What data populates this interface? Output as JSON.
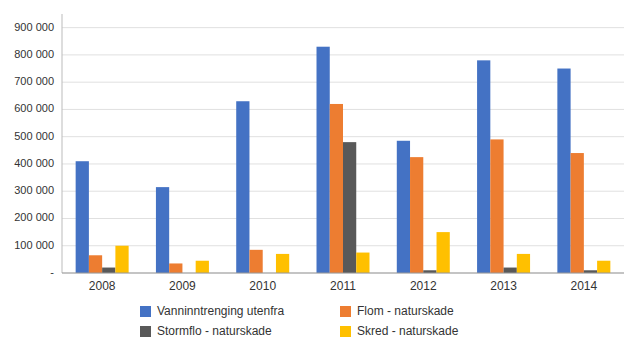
{
  "chart_data": {
    "type": "bar",
    "categories": [
      "2008",
      "2009",
      "2010",
      "2011",
      "2012",
      "2013",
      "2014"
    ],
    "series": [
      {
        "name": "Vanninntrenging utenfra",
        "color": "#4472C4",
        "values": [
          410000,
          315000,
          630000,
          830000,
          485000,
          780000,
          750000
        ]
      },
      {
        "name": "Flom - naturskade",
        "color": "#ED7D31",
        "values": [
          65000,
          35000,
          85000,
          620000,
          425000,
          490000,
          440000
        ]
      },
      {
        "name": "Stormflo - naturskade",
        "color": "#595959",
        "values": [
          20000,
          0,
          0,
          480000,
          10000,
          20000,
          10000
        ]
      },
      {
        "name": "Skred - naturskade",
        "color": "#FFC000",
        "values": [
          100000,
          45000,
          70000,
          75000,
          150000,
          70000,
          45000
        ]
      }
    ],
    "ylim": [
      0,
      950000
    ],
    "yticks": [
      {
        "value": 0,
        "label": "-"
      },
      {
        "value": 100000,
        "label": "100 000"
      },
      {
        "value": 200000,
        "label": "200 000"
      },
      {
        "value": 300000,
        "label": "300 000"
      },
      {
        "value": 400000,
        "label": "400 000"
      },
      {
        "value": 500000,
        "label": "500 000"
      },
      {
        "value": 600000,
        "label": "600 000"
      },
      {
        "value": 700000,
        "label": "700 000"
      },
      {
        "value": 800000,
        "label": "800 000"
      },
      {
        "value": 900000,
        "label": "900 000"
      }
    ],
    "grid": true,
    "legend": "bottom"
  }
}
